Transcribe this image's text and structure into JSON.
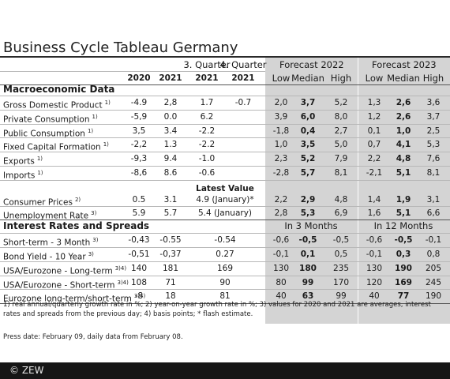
{
  "title": "Business Cycle Tableau Germany",
  "header": {
    "periods_top": [
      "3. Quarter",
      "4. Quarter"
    ],
    "forecast_2022": "Forecast 2022",
    "forecast_2023": "Forecast 2023",
    "cols": [
      "2020",
      "2021",
      "2021",
      "2021"
    ],
    "stats": [
      "Low",
      "Median",
      "High",
      "Low",
      "Median",
      "High"
    ]
  },
  "sections": {
    "macro": "Macroeconomic Data",
    "interest": "Interest Rates and Spreads",
    "latest_value": "Latest Value",
    "in3": "In 3 Months",
    "in12": "In 12 Months"
  },
  "rows": [
    {
      "label": "Gross Domestic Product",
      "sup": "1)",
      "v": [
        "-4.9",
        "2,8",
        "1.7",
        "-0.7"
      ],
      "f": [
        "2,0",
        "3,7",
        "5,2",
        "1,3",
        "2,6",
        "3,6"
      ]
    },
    {
      "label": "Private Consumption",
      "sup": "1)",
      "v": [
        "-5,9",
        "0.0",
        "6.2",
        ""
      ],
      "f": [
        "3,9",
        "6,0",
        "8,0",
        "1,2",
        "2,6",
        "3,7"
      ]
    },
    {
      "label": "Public Consumption",
      "sup": "1)",
      "v": [
        "3,5",
        "3.4",
        "-2.2",
        ""
      ],
      "f": [
        "-1,8",
        "0,4",
        "2,7",
        "0,1",
        "1,0",
        "2,5"
      ]
    },
    {
      "label": "Fixed Capital Formation",
      "sup": "1)",
      "v": [
        "-2,2",
        "1.3",
        "-2.2",
        ""
      ],
      "f": [
        "1,0",
        "3,5",
        "5,0",
        "0,7",
        "4,1",
        "5,3"
      ]
    },
    {
      "label": "Exports",
      "sup": "1)",
      "v": [
        "-9,3",
        "9.4",
        "-1.0",
        ""
      ],
      "f": [
        "2,3",
        "5,2",
        "7,9",
        "2,2",
        "4,8",
        "7,6"
      ]
    },
    {
      "label": "Imports",
      "sup": "1)",
      "v": [
        "-8,6",
        "8.6",
        "-0.6",
        ""
      ],
      "f": [
        "-2,8",
        "5,7",
        "8,1",
        "-2,1",
        "5,1",
        "8,1"
      ]
    },
    {
      "label": "Consumer Prices",
      "sup": "2)",
      "v": [
        "0.5",
        "3.1",
        "4.9 (January)*"
      ],
      "f": [
        "2,2",
        "2,9",
        "4,8",
        "1,4",
        "1,9",
        "3,1"
      ]
    },
    {
      "label": "Unemployment Rate",
      "sup": "3)",
      "v": [
        "5.9",
        "5.7",
        "5.4 (January)"
      ],
      "f": [
        "2,8",
        "5,3",
        "6,9",
        "1,6",
        "5,1",
        "6,6"
      ]
    },
    {
      "label": "Short-term - 3 Month",
      "sup": "3)",
      "v": [
        "-0,43",
        "-0.55",
        "-0.54"
      ],
      "f": [
        "-0,6",
        "-0,5",
        "-0,5",
        "-0,6",
        "-0,5",
        "-0,1"
      ]
    },
    {
      "label": "Bond Yield - 10 Year",
      "sup": "3)",
      "v": [
        "-0,51",
        "-0,37",
        "0.27"
      ],
      "f": [
        "-0,1",
        "0,1",
        "0,5",
        "-0,1",
        "0,3",
        "0,8"
      ]
    },
    {
      "label": "USA/Eurozone - Long-term",
      "sup": "3)4)",
      "v": [
        "140",
        "181",
        "169"
      ],
      "f": [
        "130",
        "180",
        "235",
        "130",
        "190",
        "205"
      ]
    },
    {
      "label": "USA/Eurozone - Short-term",
      "sup": "3)4)",
      "v": [
        "108",
        "71",
        "90"
      ],
      "f": [
        "80",
        "99",
        "170",
        "120",
        "169",
        "245"
      ]
    },
    {
      "label": "Eurozone long-term/short-term",
      "sup": "3)4)",
      "v": [
        "-8",
        "18",
        "81"
      ],
      "f": [
        "40",
        "63",
        "99",
        "40",
        "77",
        "190"
      ]
    }
  ],
  "footnote": "1) real annual/quarterly growth rate in %; 2) year-on-year growth rate in %; 3) values for 2020 and 2021 are averages, interest rates and spreads from the previous day; 4) basis points; * flash estimate.",
  "press_date": "Press date: February 09, daily data from February 08.",
  "copyright": "© ZEW"
}
